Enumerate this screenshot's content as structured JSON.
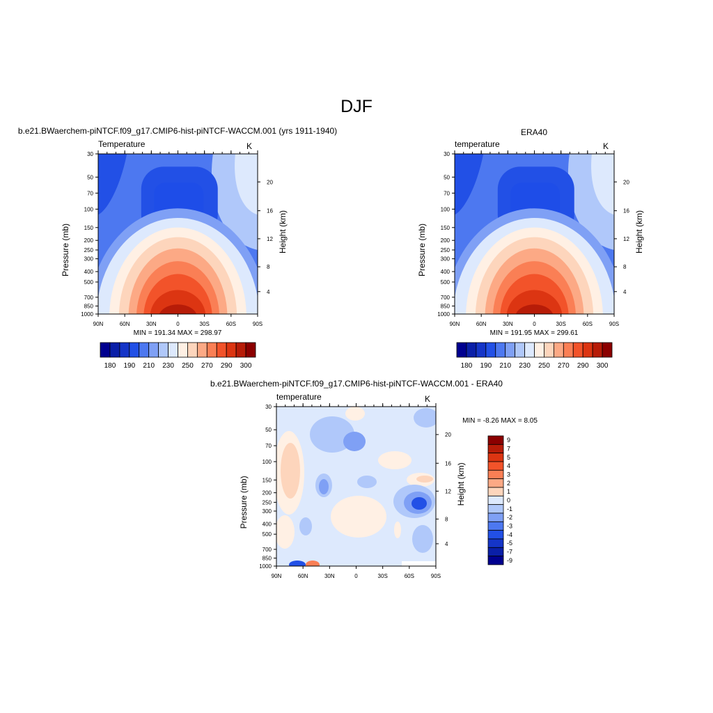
{
  "page": {
    "title": "DJF"
  },
  "panels": [
    {
      "id": "model",
      "title": "b.e21.BWaerchem-piNTCF.f09_g17.CMIP6-hist-piNTCF-WACCM.001 (yrs 1911-1940)",
      "left_label": "Temperature",
      "right_label": "K",
      "stats": "MIN = 191.34  MAX = 298.97"
    },
    {
      "id": "obs",
      "title": "ERA40",
      "left_label": "temperature",
      "right_label": "K",
      "stats": "MIN = 191.95  MAX = 299.61"
    },
    {
      "id": "diff",
      "title": "b.e21.BWaerchem-piNTCF.f09_g17.CMIP6-hist-piNTCF-WACCM.001 - ERA40",
      "left_label": "temperature",
      "right_label": "K",
      "stats": "MIN =  -8.26  MAX =   8.05"
    }
  ],
  "axes": {
    "y_label": "Pressure (mb)",
    "y2_label": "Height (km)",
    "pressure_ticks": [
      "30",
      "50",
      "70",
      "100",
      "150",
      "200",
      "250",
      "300",
      "400",
      "500",
      "700",
      "850",
      "1000"
    ],
    "height_ticks": [
      "4",
      "8",
      "12",
      "16",
      "20"
    ],
    "lat_ticks": [
      "90N",
      "60N",
      "30N",
      "0",
      "30S",
      "60S",
      "90S"
    ]
  },
  "colors": {
    "temp_bins": [
      "#00008f",
      "#0a1fa8",
      "#1535c8",
      "#2250e6",
      "#4d78f0",
      "#7fa0f5",
      "#b0c8fa",
      "#dde9fd",
      "#fff0e4",
      "#fdd5bc",
      "#fca985",
      "#fa7f55",
      "#f2532a",
      "#dc3512",
      "#b71c08",
      "#8b0000"
    ],
    "diff_bins": [
      "#00008f",
      "#0a1fa8",
      "#1535c8",
      "#2250e6",
      "#4d78f0",
      "#7fa0f5",
      "#b0c8fa",
      "#dde9fd",
      "#fff0e4",
      "#fdd5bc",
      "#fca985",
      "#fa7f55",
      "#f2532a",
      "#dc3512",
      "#b71c08",
      "#8b0000"
    ]
  },
  "chart_data": [
    {
      "type": "heatmap",
      "title": "b.e21.BWaerchem-piNTCF.f09_g17.CMIP6-hist-piNTCF-WACCM.001 (yrs 1911-1940)",
      "variable": "Temperature",
      "units": "K",
      "xlabel": "",
      "ylabel": "Pressure (mb)",
      "y2label": "Height (km)",
      "x": [
        "90N",
        "60N",
        "30N",
        "0",
        "30S",
        "60S",
        "90S"
      ],
      "y": [
        "30",
        "50",
        "70",
        "100",
        "150",
        "200",
        "250",
        "300",
        "400",
        "500",
        "700",
        "850",
        "1000"
      ],
      "min": 191.34,
      "max": 298.97,
      "colorbar_labels": [
        "180",
        "190",
        "210",
        "230",
        "250",
        "270",
        "290",
        "300"
      ]
    },
    {
      "type": "heatmap",
      "title": "ERA40",
      "variable": "temperature",
      "units": "K",
      "xlabel": "",
      "ylabel": "Pressure (mb)",
      "y2label": "Height (km)",
      "x": [
        "90N",
        "60N",
        "30N",
        "0",
        "30S",
        "60S",
        "90S"
      ],
      "y": [
        "30",
        "50",
        "70",
        "100",
        "150",
        "200",
        "250",
        "300",
        "400",
        "500",
        "700",
        "850",
        "1000"
      ],
      "min": 191.95,
      "max": 299.61,
      "colorbar_labels": [
        "180",
        "190",
        "210",
        "230",
        "250",
        "270",
        "290",
        "300"
      ]
    },
    {
      "type": "heatmap",
      "title": "b.e21.BWaerchem-piNTCF.f09_g17.CMIP6-hist-piNTCF-WACCM.001 - ERA40",
      "variable": "temperature",
      "units": "K",
      "xlabel": "",
      "ylabel": "Pressure (mb)",
      "y2label": "Height (km)",
      "x": [
        "90N",
        "60N",
        "30N",
        "0",
        "30S",
        "60S",
        "90S"
      ],
      "y": [
        "30",
        "50",
        "70",
        "100",
        "150",
        "200",
        "250",
        "300",
        "400",
        "500",
        "700",
        "850",
        "1000"
      ],
      "min": -8.26,
      "max": 8.05,
      "colorbar_labels": [
        "9",
        "7",
        "5",
        "4",
        "3",
        "2",
        "1",
        "0",
        "-1",
        "-2",
        "-3",
        "-4",
        "-5",
        "-7",
        "-9"
      ]
    }
  ]
}
